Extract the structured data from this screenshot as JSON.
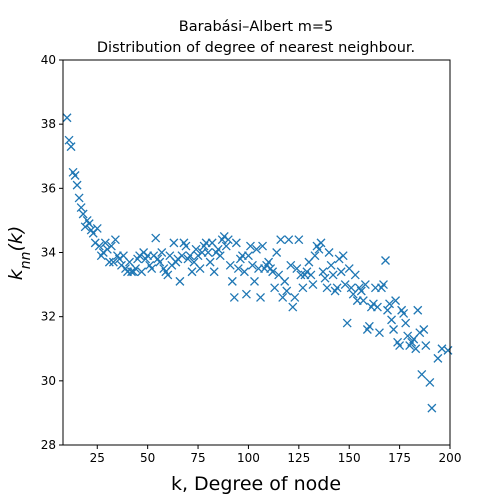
{
  "chart_data": {
    "type": "scatter",
    "title": "Barabási–Albert m=5",
    "subtitle": "Distribution of degree of nearest neighbour.",
    "xlabel": "k, Degree of node",
    "ylabel": "k_nn(k)",
    "xlim": [
      8,
      200
    ],
    "ylim": [
      28,
      40
    ],
    "xticks": [
      25,
      50,
      75,
      100,
      125,
      150,
      175,
      200
    ],
    "yticks": [
      28,
      30,
      32,
      34,
      36,
      38,
      40
    ],
    "grid": false,
    "legend": "none",
    "marker": "x",
    "color": "#1f77b4",
    "series": [
      {
        "points": [
          [
            10,
            38.2
          ],
          [
            11,
            37.5
          ],
          [
            12,
            37.3
          ],
          [
            13,
            36.5
          ],
          [
            14,
            36.4
          ],
          [
            15,
            36.1
          ],
          [
            16,
            35.7
          ],
          [
            17,
            35.4
          ],
          [
            18,
            35.2
          ],
          [
            19,
            34.8
          ],
          [
            20,
            35.0
          ],
          [
            21,
            34.9
          ],
          [
            22,
            34.7
          ],
          [
            23,
            34.6
          ],
          [
            24,
            34.3
          ],
          [
            25,
            34.75
          ],
          [
            26,
            34.2
          ],
          [
            27,
            33.9
          ],
          [
            28,
            34.0
          ],
          [
            29,
            34.3
          ],
          [
            30,
            34.1
          ],
          [
            31,
            33.7
          ],
          [
            32,
            34.2
          ],
          [
            33,
            33.7
          ],
          [
            34,
            34.4
          ],
          [
            35,
            33.9
          ],
          [
            36,
            33.8
          ],
          [
            37,
            33.6
          ],
          [
            38,
            33.9
          ],
          [
            39,
            33.5
          ],
          [
            40,
            33.4
          ],
          [
            41,
            33.7
          ],
          [
            42,
            33.4
          ],
          [
            43,
            33.4
          ],
          [
            44,
            33.5
          ],
          [
            45,
            33.8
          ],
          [
            46,
            33.9
          ],
          [
            47,
            33.4
          ],
          [
            48,
            34.0
          ],
          [
            49,
            33.8
          ],
          [
            50,
            33.9
          ],
          [
            51,
            33.6
          ],
          [
            52,
            33.5
          ],
          [
            53,
            33.9
          ],
          [
            54,
            34.45
          ],
          [
            55,
            33.8
          ],
          [
            56,
            33.7
          ],
          [
            57,
            34.0
          ],
          [
            58,
            33.5
          ],
          [
            59,
            33.4
          ],
          [
            60,
            33.3
          ],
          [
            61,
            33.9
          ],
          [
            62,
            33.6
          ],
          [
            63,
            34.3
          ],
          [
            64,
            33.7
          ],
          [
            65,
            33.8
          ],
          [
            66,
            33.1
          ],
          [
            67,
            33.9
          ],
          [
            68,
            34.3
          ],
          [
            69,
            34.2
          ],
          [
            70,
            33.8
          ],
          [
            71,
            33.9
          ],
          [
            72,
            33.4
          ],
          [
            73,
            33.7
          ],
          [
            74,
            34.1
          ],
          [
            75,
            33.9
          ],
          [
            76,
            33.5
          ],
          [
            77,
            34.0
          ],
          [
            78,
            34.2
          ],
          [
            79,
            34.3
          ],
          [
            80,
            34.0
          ],
          [
            81,
            33.7
          ],
          [
            82,
            34.3
          ],
          [
            83,
            33.4
          ],
          [
            84,
            34.0
          ],
          [
            85,
            34.1
          ],
          [
            86,
            33.9
          ],
          [
            87,
            34.4
          ],
          [
            88,
            34.5
          ],
          [
            89,
            34.2
          ],
          [
            90,
            34.4
          ],
          [
            91,
            33.6
          ],
          [
            92,
            33.1
          ],
          [
            93,
            32.6
          ],
          [
            94,
            34.3
          ],
          [
            95,
            33.5
          ],
          [
            96,
            33.8
          ],
          [
            97,
            33.9
          ],
          [
            98,
            33.4
          ],
          [
            99,
            32.7
          ],
          [
            100,
            33.9
          ],
          [
            101,
            34.2
          ],
          [
            102,
            33.6
          ],
          [
            103,
            33.1
          ],
          [
            104,
            34.1
          ],
          [
            105,
            33.5
          ],
          [
            106,
            32.6
          ],
          [
            107,
            34.2
          ],
          [
            108,
            33.5
          ],
          [
            109,
            33.6
          ],
          [
            110,
            33.7
          ],
          [
            111,
            33.5
          ],
          [
            112,
            33.4
          ],
          [
            113,
            32.9
          ],
          [
            114,
            34.0
          ],
          [
            115,
            33.3
          ],
          [
            116,
            34.4
          ],
          [
            117,
            32.6
          ],
          [
            118,
            33.1
          ],
          [
            119,
            32.8
          ],
          [
            120,
            34.4
          ],
          [
            121,
            33.6
          ],
          [
            122,
            32.3
          ],
          [
            123,
            32.6
          ],
          [
            124,
            33.5
          ],
          [
            125,
            34.4
          ],
          [
            126,
            33.3
          ],
          [
            127,
            32.9
          ],
          [
            128,
            33.3
          ],
          [
            129,
            33.4
          ],
          [
            130,
            33.7
          ],
          [
            131,
            33.3
          ],
          [
            132,
            33.0
          ],
          [
            133,
            33.9
          ],
          [
            134,
            34.2
          ],
          [
            135,
            34.1
          ],
          [
            136,
            34.3
          ],
          [
            137,
            33.4
          ],
          [
            138,
            33.2
          ],
          [
            139,
            32.9
          ],
          [
            140,
            34.0
          ],
          [
            141,
            33.6
          ],
          [
            142,
            33.3
          ],
          [
            143,
            32.8
          ],
          [
            144,
            32.9
          ],
          [
            145,
            33.8
          ],
          [
            146,
            33.4
          ],
          [
            147,
            33.9
          ],
          [
            148,
            33.0
          ],
          [
            149,
            31.8
          ],
          [
            150,
            33.5
          ],
          [
            151,
            32.9
          ],
          [
            152,
            32.7
          ],
          [
            153,
            33.3
          ],
          [
            154,
            32.5
          ],
          [
            155,
            32.9
          ],
          [
            156,
            32.8
          ],
          [
            157,
            32.5
          ],
          [
            158,
            33.0
          ],
          [
            159,
            31.6
          ],
          [
            160,
            31.7
          ],
          [
            161,
            32.3
          ],
          [
            162,
            32.4
          ],
          [
            163,
            32.9
          ],
          [
            164,
            32.3
          ],
          [
            165,
            31.5
          ],
          [
            166,
            32.9
          ],
          [
            167,
            33.0
          ],
          [
            168,
            33.75
          ],
          [
            169,
            32.2
          ],
          [
            170,
            32.4
          ],
          [
            171,
            31.9
          ],
          [
            172,
            31.6
          ],
          [
            173,
            32.5
          ],
          [
            174,
            31.2
          ],
          [
            175,
            31.1
          ],
          [
            176,
            32.2
          ],
          [
            177,
            32.1
          ],
          [
            178,
            31.8
          ],
          [
            179,
            31.4
          ],
          [
            180,
            31.1
          ],
          [
            181,
            31.2
          ],
          [
            182,
            31.3
          ],
          [
            183,
            31.0
          ],
          [
            184,
            32.2
          ],
          [
            185,
            31.5
          ],
          [
            186,
            30.2
          ],
          [
            187,
            31.6
          ],
          [
            188,
            31.1
          ],
          [
            190,
            29.95
          ],
          [
            191,
            29.15
          ],
          [
            194,
            30.7
          ],
          [
            196,
            31.0
          ],
          [
            199,
            30.95
          ]
        ]
      }
    ]
  }
}
